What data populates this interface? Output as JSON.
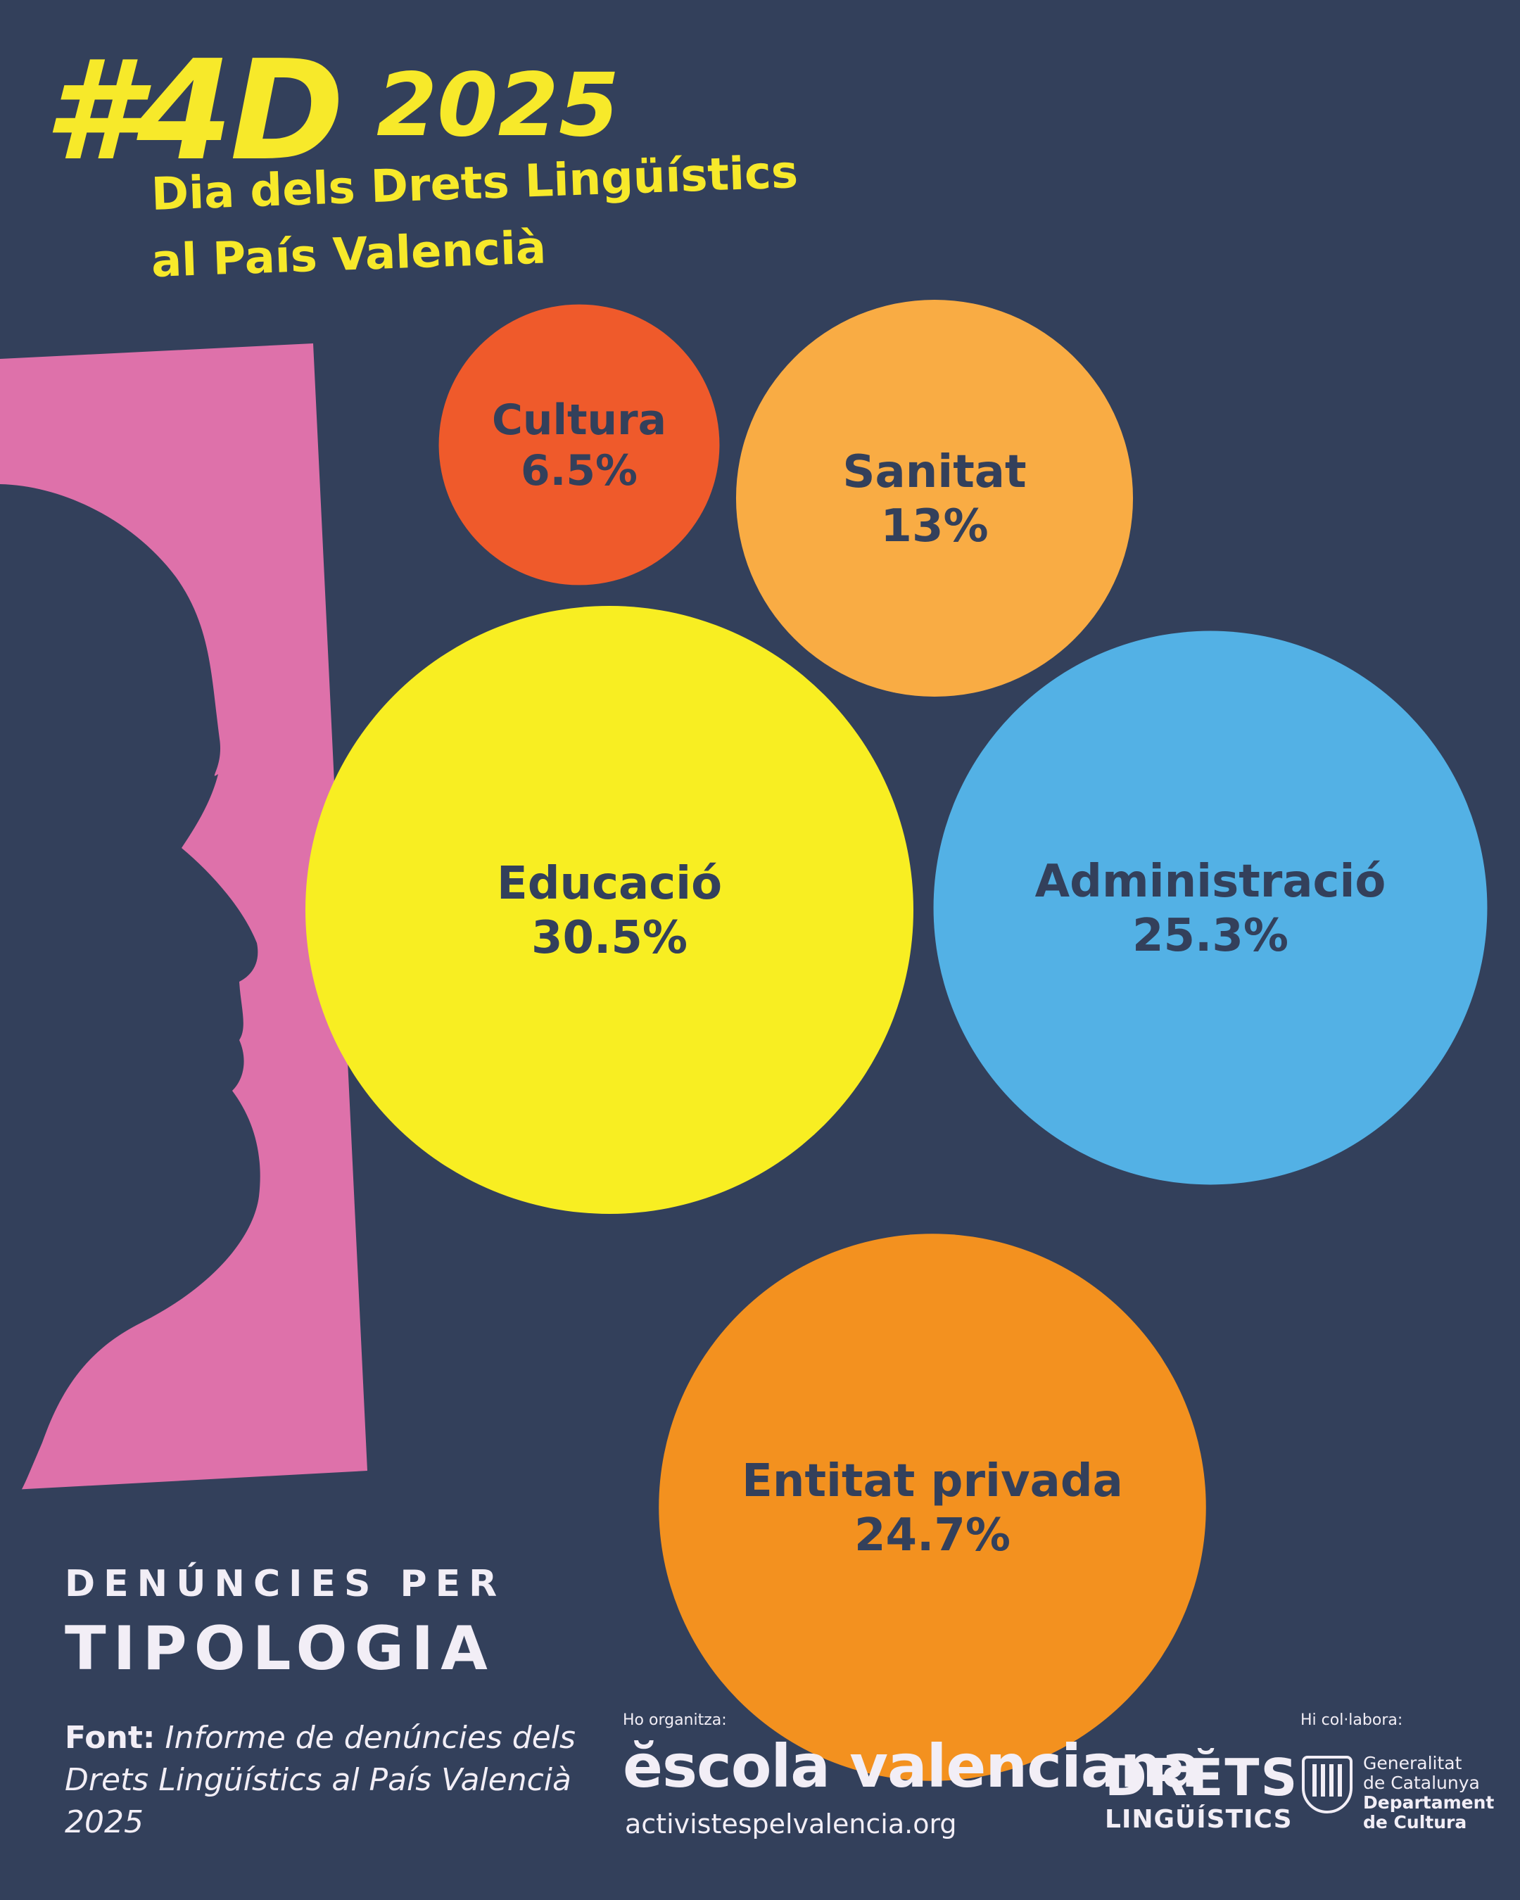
{
  "header": {
    "hashtag": "#4D",
    "year": "2025",
    "subtitle_line1": "Dia dels Drets Lingüístics",
    "subtitle_line2": "al País Valencià"
  },
  "heading": {
    "line1": "DENÚNCIES PER",
    "line2": "TIPOLOGIA"
  },
  "source": {
    "label": "Font:",
    "text": "Informe de denúncies dels Drets Lingüístics al País Valencià 2025"
  },
  "footer": {
    "organizer_label": "Ho organitza:",
    "organizer_name": "ĕscola valenciana",
    "organizer_url": "activistespelvalencia.org",
    "drets_line1": "DRĔTS",
    "drets_line2": "LINGÜÍSTICS",
    "collab_label": "Hi col·labora:",
    "gen_line1": "Generalitat",
    "gen_line2": "de Catalunya",
    "gen_line3": "Departament",
    "gen_line4": "de Cultura"
  },
  "colors": {
    "background": "#33405b",
    "title": "#f7e92a",
    "silhouette_panel": "#de71aa",
    "label_text": "#33405b"
  },
  "chart_data": {
    "type": "bubble",
    "title": "DENÚNCIES PER TIPOLOGIA",
    "unit": "%",
    "series": [
      {
        "category": "Cultura",
        "value": 6.5,
        "label": "6.5%",
        "color": "#ef5a2b"
      },
      {
        "category": "Sanitat",
        "value": 13,
        "label": "13%",
        "color": "#f9ac44"
      },
      {
        "category": "Educació",
        "value": 30.5,
        "label": "30.5%",
        "color": "#f8ee22"
      },
      {
        "category": "Administració",
        "value": 25.3,
        "label": "25.3%",
        "color": "#53b1e5"
      },
      {
        "category": "Entitat privada",
        "value": 24.7,
        "label": "24.7%",
        "color": "#f3911f"
      }
    ]
  }
}
